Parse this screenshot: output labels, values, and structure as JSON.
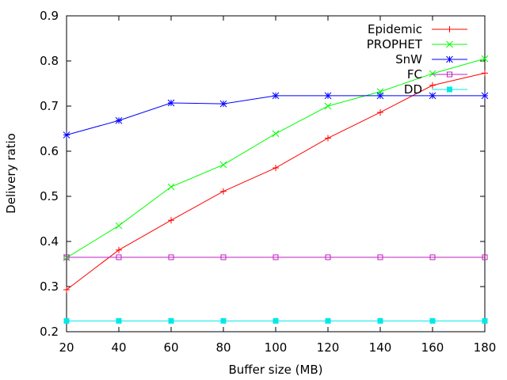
{
  "chart_data": {
    "type": "line",
    "title": "",
    "xlabel": "Buffer size (MB)",
    "ylabel": "Delivery ratio",
    "x": [
      20,
      40,
      60,
      80,
      100,
      120,
      140,
      160,
      180
    ],
    "xlim": [
      20,
      180
    ],
    "ylim": [
      0.2,
      0.9
    ],
    "xticks": [
      20,
      40,
      60,
      80,
      100,
      120,
      140,
      160,
      180
    ],
    "xtick_labels": [
      "20",
      "40",
      "60",
      "80",
      "100",
      "120",
      "140",
      "160",
      "180"
    ],
    "yticks": [
      0.2,
      0.3,
      0.4,
      0.5,
      0.6,
      0.7,
      0.8,
      0.9
    ],
    "ytick_labels": [
      "0.2",
      "0.3",
      "0.4",
      "0.5",
      "0.6",
      "0.7",
      "0.8",
      "0.9"
    ],
    "grid": false,
    "legend_position": "top-right",
    "series": [
      {
        "name": "Epidemic",
        "color": "#ff0000",
        "marker": "plus",
        "values": [
          0.293,
          0.381,
          0.447,
          0.511,
          0.563,
          0.629,
          0.686,
          0.746,
          0.773
        ]
      },
      {
        "name": "PROPHET",
        "color": "#00ff00",
        "marker": "cross",
        "values": [
          0.364,
          0.435,
          0.521,
          0.57,
          0.639,
          0.7,
          0.732,
          0.772,
          0.805
        ]
      },
      {
        "name": "SnW",
        "color": "#0000ff",
        "marker": "star",
        "values": [
          0.636,
          0.668,
          0.707,
          0.705,
          0.723,
          0.723,
          0.723,
          0.723,
          0.723
        ]
      },
      {
        "name": "FC",
        "color": "#c020c0",
        "marker": "open-square",
        "values": [
          0.365,
          0.365,
          0.365,
          0.365,
          0.365,
          0.365,
          0.365,
          0.365,
          0.365
        ]
      },
      {
        "name": "DD",
        "color": "#00e8e8",
        "marker": "filled-square",
        "values": [
          0.224,
          0.224,
          0.224,
          0.224,
          0.224,
          0.224,
          0.224,
          0.224,
          0.224
        ]
      }
    ]
  }
}
